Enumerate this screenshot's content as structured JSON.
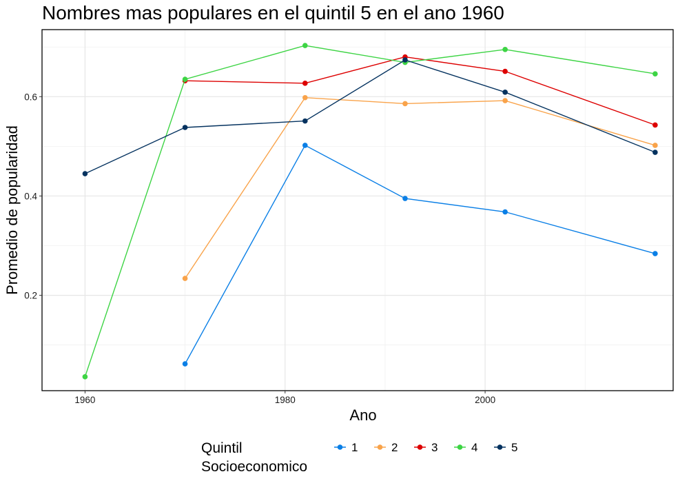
{
  "chart_data": {
    "type": "line",
    "title": "Nombres mas populares en el quintil 5 en el ano 1960",
    "xlabel": "Ano",
    "ylabel": "Promedio de popularidad",
    "xlim": [
      1955.7,
      2018.8
    ],
    "ylim": [
      0.008,
      0.735
    ],
    "x_ticks": [
      1960,
      1980,
      2000
    ],
    "y_ticks": [
      0.2,
      0.4,
      0.6
    ],
    "x_tick_labels": [
      "1960",
      "1980",
      "2000"
    ],
    "y_tick_labels": [
      "0.2",
      "0.4",
      "0.6"
    ],
    "grid": true,
    "legend": {
      "title_line1": "Quintil",
      "title_line2": "Socioeconomico",
      "position": "bottom"
    },
    "series": [
      {
        "name": "1",
        "color": "#0a7fe6",
        "points": [
          [
            1970,
            0.062
          ],
          [
            1982,
            0.502
          ],
          [
            1992,
            0.395
          ],
          [
            2002,
            0.368
          ],
          [
            2017,
            0.284
          ]
        ]
      },
      {
        "name": "2",
        "color": "#f9a34a",
        "points": [
          [
            1970,
            0.234
          ],
          [
            1982,
            0.598
          ],
          [
            1992,
            0.586
          ],
          [
            2002,
            0.592
          ],
          [
            2017,
            0.502
          ]
        ]
      },
      {
        "name": "3",
        "color": "#dd0000",
        "points": [
          [
            1970,
            0.632
          ],
          [
            1982,
            0.627
          ],
          [
            1992,
            0.68
          ],
          [
            2002,
            0.651
          ],
          [
            2017,
            0.543
          ]
        ]
      },
      {
        "name": "4",
        "color": "#3dd444",
        "points": [
          [
            1960,
            0.036
          ],
          [
            1970,
            0.635
          ],
          [
            1982,
            0.703
          ],
          [
            1992,
            0.669
          ],
          [
            2002,
            0.695
          ],
          [
            2017,
            0.646
          ]
        ]
      },
      {
        "name": "5",
        "color": "#04325f",
        "points": [
          [
            1960,
            0.445
          ],
          [
            1970,
            0.538
          ],
          [
            1982,
            0.551
          ],
          [
            1992,
            0.674
          ],
          [
            2002,
            0.609
          ],
          [
            2017,
            0.488
          ]
        ]
      }
    ]
  }
}
